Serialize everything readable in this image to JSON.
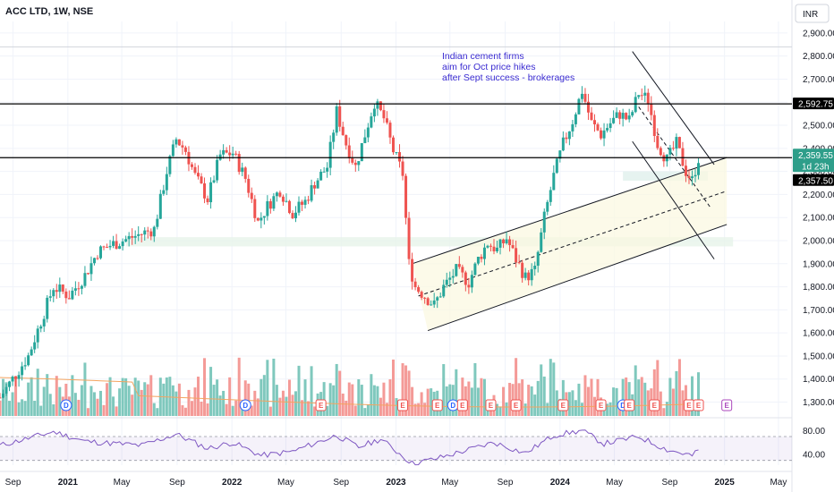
{
  "header": {
    "symbol": "ACC LTD, 1W, NSE",
    "currency": "INR"
  },
  "annotation": [
    "Indian cement firms",
    "aim for Oct price hikes",
    "after Sept success - brokerages"
  ],
  "price_tags": [
    {
      "value": 2592.75,
      "label": "2,592.75",
      "color": "#000000"
    },
    {
      "value": 2359.55,
      "label": "2,359.55",
      "sublabel": "1d 23h",
      "color": "#2e9e8a"
    },
    {
      "value": 2357.5,
      "label": "2,357.50",
      "color": "#000000"
    }
  ],
  "colors": {
    "up": "#26a69a",
    "down": "#ef5350",
    "volume_up": "#7fc8bd",
    "volume_down": "#f49a97",
    "rsi": "#7e57c2",
    "annotation": "#3a2bd1",
    "grid": "#f0f3fa",
    "vol_ma": "#f4a460"
  },
  "chart_data": {
    "type": "candlestick",
    "title": "ACC LTD, 1W, NSE",
    "y_axis": {
      "ticks": [
        1300,
        1400,
        1500,
        1600,
        1700,
        1800,
        1900,
        2000,
        2100,
        2200,
        2300,
        2400,
        2500,
        2600,
        2700,
        2800,
        2900
      ],
      "tick_labels": [
        "1,300.00",
        "1,400.00",
        "1,500.00",
        "1,600.00",
        "1,700.00",
        "1,800.00",
        "1,900.00",
        "2,000.00",
        "2,100.00",
        "2,200.00",
        "2,300.00",
        "2,400.00",
        "2,500.00",
        "2,600.00",
        "2,700.00",
        "2,800.00",
        "2,900.00"
      ],
      "range": [
        1240,
        2950
      ]
    },
    "x_axis": {
      "ticks": [
        "2020-09-01",
        "2021-01-01",
        "2021-05-01",
        "2021-09-01",
        "2022-01-01",
        "2022-05-01",
        "2022-09-01",
        "2023-01-01",
        "2023-05-01",
        "2023-09-01",
        "2024-01-01",
        "2024-05-01",
        "2024-09-01",
        "2025-01-01",
        "2025-05-01"
      ],
      "tick_labels": [
        "Sep",
        "2021",
        "May",
        "Sep",
        "2022",
        "May",
        "Sep",
        "2023",
        "May",
        "Sep",
        "2024",
        "May",
        "Sep",
        "2025",
        "May"
      ],
      "bold": [
        "2021",
        "2022",
        "2023",
        "2024",
        "2025"
      ]
    },
    "horizontal_lines": [
      2592.75,
      2359.55
    ],
    "price_anchors": [
      [
        "2020-08-03",
        1320
      ],
      [
        "2020-09-07",
        1420
      ],
      [
        "2020-10-05",
        1500
      ],
      [
        "2020-11-02",
        1650
      ],
      [
        "2020-11-30",
        1800
      ],
      [
        "2021-01-04",
        1760
      ],
      [
        "2021-02-08",
        1850
      ],
      [
        "2021-03-08",
        1950
      ],
      [
        "2021-04-05",
        1980
      ],
      [
        "2021-05-17",
        2010
      ],
      [
        "2021-06-14",
        2030
      ],
      [
        "2021-07-12",
        2050
      ],
      [
        "2021-08-09",
        2300
      ],
      [
        "2021-08-30",
        2440
      ],
      [
        "2021-09-20",
        2390
      ],
      [
        "2021-10-11",
        2280
      ],
      [
        "2021-11-08",
        2180
      ],
      [
        "2021-12-06",
        2370
      ],
      [
        "2022-01-03",
        2380
      ],
      [
        "2022-01-31",
        2270
      ],
      [
        "2022-02-28",
        2080
      ],
      [
        "2022-03-21",
        2150
      ],
      [
        "2022-04-18",
        2220
      ],
      [
        "2022-05-16",
        2120
      ],
      [
        "2022-06-13",
        2170
      ],
      [
        "2022-07-04",
        2250
      ],
      [
        "2022-08-01",
        2320
      ],
      [
        "2022-08-22",
        2560
      ],
      [
        "2022-09-12",
        2420
      ],
      [
        "2022-10-03",
        2320
      ],
      [
        "2022-10-24",
        2460
      ],
      [
        "2022-11-14",
        2600
      ],
      [
        "2022-12-05",
        2530
      ],
      [
        "2022-12-26",
        2390
      ],
      [
        "2023-01-16",
        2290
      ],
      [
        "2023-01-30",
        1900
      ],
      [
        "2023-02-13",
        1800
      ],
      [
        "2023-03-06",
        1760
      ],
      [
        "2023-03-27",
        1720
      ],
      [
        "2023-04-17",
        1800
      ],
      [
        "2023-05-15",
        1870
      ],
      [
        "2023-06-12",
        1820
      ],
      [
        "2023-07-03",
        1920
      ],
      [
        "2023-07-24",
        1990
      ],
      [
        "2023-08-14",
        1960
      ],
      [
        "2023-09-04",
        2010
      ],
      [
        "2023-09-25",
        1920
      ],
      [
        "2023-10-16",
        1840
      ],
      [
        "2023-11-06",
        1870
      ],
      [
        "2023-11-27",
        2100
      ],
      [
        "2023-12-18",
        2280
      ],
      [
        "2024-01-08",
        2420
      ],
      [
        "2024-01-29",
        2520
      ],
      [
        "2024-02-19",
        2650
      ],
      [
        "2024-03-11",
        2510
      ],
      [
        "2024-04-01",
        2460
      ],
      [
        "2024-04-22",
        2510
      ],
      [
        "2024-05-13",
        2550
      ],
      [
        "2024-06-03",
        2520
      ],
      [
        "2024-06-24",
        2640
      ],
      [
        "2024-07-15",
        2610
      ],
      [
        "2024-08-05",
        2420
      ],
      [
        "2024-08-26",
        2350
      ],
      [
        "2024-09-16",
        2420
      ],
      [
        "2024-10-07",
        2300
      ],
      [
        "2024-10-21",
        2260
      ],
      [
        "2024-11-04",
        2357.5
      ]
    ],
    "events": [
      {
        "date": "2020-12-28",
        "type": "D"
      },
      {
        "date": "2022-01-31",
        "type": "D"
      },
      {
        "date": "2022-07-18",
        "type": "E"
      },
      {
        "date": "2023-01-16",
        "type": "E"
      },
      {
        "date": "2023-04-03",
        "type": "E"
      },
      {
        "date": "2023-05-08",
        "type": "D"
      },
      {
        "date": "2023-05-29",
        "type": "E"
      },
      {
        "date": "2023-07-31",
        "type": "E"
      },
      {
        "date": "2023-09-25",
        "type": "E"
      },
      {
        "date": "2024-01-08",
        "type": "E"
      },
      {
        "date": "2024-04-01",
        "type": "E"
      },
      {
        "date": "2024-05-20",
        "type": "D"
      },
      {
        "date": "2024-06-03",
        "type": "E"
      },
      {
        "date": "2024-07-29",
        "type": "E"
      },
      {
        "date": "2024-10-14",
        "type": "E"
      },
      {
        "date": "2024-11-04",
        "type": "E"
      },
      {
        "date": "2025-01-06",
        "type": "E"
      }
    ],
    "rsi": {
      "ticks": [
        40,
        80
      ],
      "tick_labels": [
        "40.00",
        "80.00"
      ],
      "band": [
        30,
        70
      ],
      "range": [
        22,
        88
      ],
      "anchors": [
        [
          "2020-08-03",
          55
        ],
        [
          "2020-11-30",
          78
        ],
        [
          "2021-02-08",
          62
        ],
        [
          "2021-06-14",
          55
        ],
        [
          "2021-08-30",
          74
        ],
        [
          "2021-11-08",
          50
        ],
        [
          "2022-01-03",
          60
        ],
        [
          "2022-03-07",
          38
        ],
        [
          "2022-05-16",
          45
        ],
        [
          "2022-08-22",
          72
        ],
        [
          "2022-10-10",
          52
        ],
        [
          "2022-11-28",
          66
        ],
        [
          "2023-02-06",
          25
        ],
        [
          "2023-03-27",
          32
        ],
        [
          "2023-06-12",
          48
        ],
        [
          "2023-08-07",
          60
        ],
        [
          "2023-10-16",
          42
        ],
        [
          "2023-12-18",
          72
        ],
        [
          "2024-02-19",
          80
        ],
        [
          "2024-04-08",
          58
        ],
        [
          "2024-06-24",
          70
        ],
        [
          "2024-08-26",
          48
        ],
        [
          "2024-10-21",
          38
        ],
        [
          "2024-11-04",
          46
        ]
      ]
    }
  }
}
